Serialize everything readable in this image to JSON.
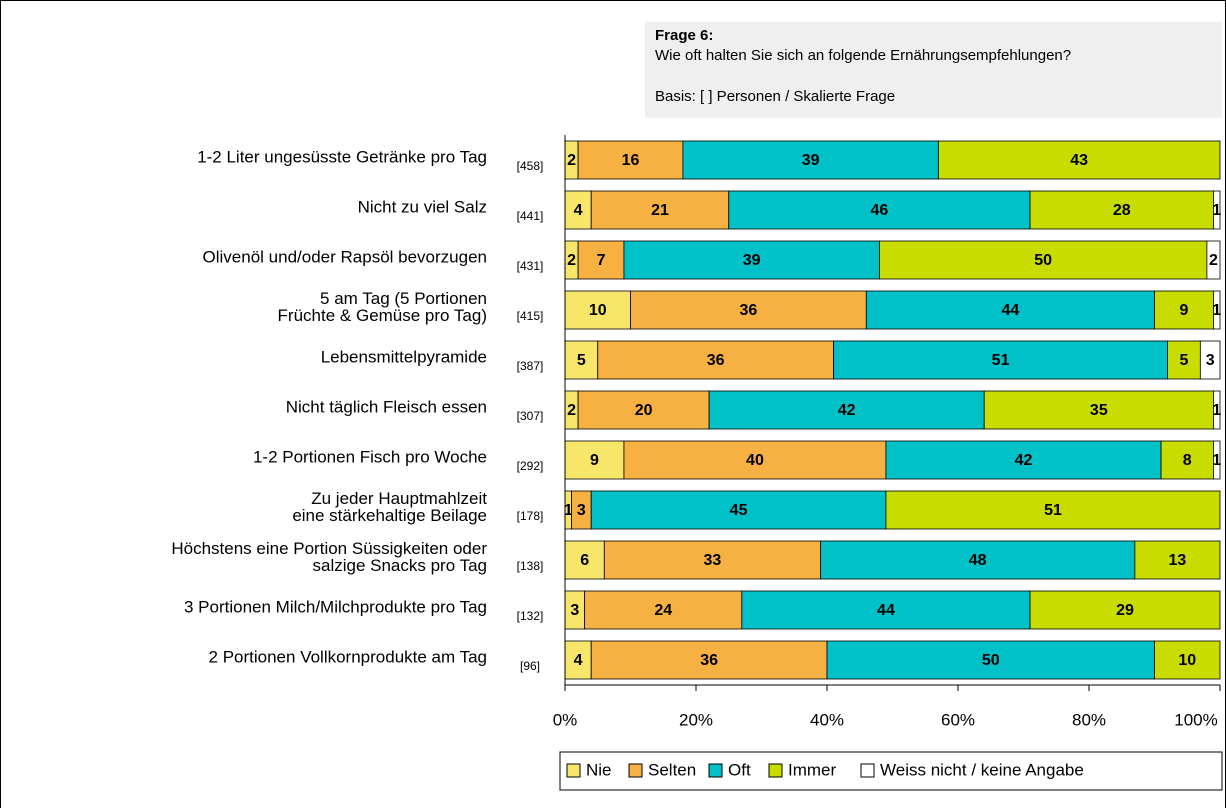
{
  "chart_data": {
    "type": "stacked_barh",
    "question_title": "Frage 6:",
    "question_text": "Wie oft halten Sie sich an folgende Ernährungsempfehlungen?",
    "basis": "Basis: [ ] Personen / Skalierte Frage",
    "categories": [
      [
        "1-2 Liter ungesüsste Getränke pro Tag"
      ],
      [
        "Nicht zu viel Salz"
      ],
      [
        "Olivenöl und/oder Rapsöl bevorzugen"
      ],
      [
        "5 am Tag (5 Portionen",
        "Früchte & Gemüse pro Tag)"
      ],
      [
        "Lebensmittelpyramide"
      ],
      [
        "Nicht täglich Fleisch essen"
      ],
      [
        "1-2 Portionen Fisch pro Woche"
      ],
      [
        "Zu jeder Hauptmahlzeit",
        "eine stärkehaltige Beilage"
      ],
      [
        "Höchstens eine Portion Süssigkeiten oder",
        "salzige Snacks pro Tag"
      ],
      [
        "3 Portionen Milch/Milchprodukte pro Tag"
      ],
      [
        "2 Portionen Vollkornprodukte am Tag"
      ]
    ],
    "counts": [
      "[458]",
      "[441]",
      "[431]",
      "[415]",
      "[387]",
      "[307]",
      "[292]",
      "[178]",
      "[138]",
      "[132]",
      "[96]"
    ],
    "series": [
      {
        "name": "Nie",
        "color": "#f7e66a",
        "values": [
          2,
          4,
          2,
          10,
          5,
          2,
          9,
          1,
          6,
          3,
          4
        ]
      },
      {
        "name": "Selten",
        "color": "#f7b042",
        "values": [
          16,
          21,
          7,
          36,
          36,
          20,
          40,
          3,
          33,
          24,
          36
        ]
      },
      {
        "name": "Oft",
        "color": "#00c0c8",
        "values": [
          39,
          46,
          39,
          44,
          51,
          42,
          42,
          45,
          48,
          44,
          50
        ]
      },
      {
        "name": "Immer",
        "color": "#c8dc00",
        "values": [
          43,
          28,
          50,
          9,
          5,
          35,
          8,
          51,
          13,
          29,
          10
        ]
      },
      {
        "name": "Weiss nicht / keine Angabe",
        "color": "#ffffff",
        "values": [
          null,
          1,
          2,
          1,
          3,
          1,
          1,
          null,
          null,
          null,
          null
        ]
      }
    ],
    "xlim": [
      0,
      100
    ],
    "xticks": [
      {
        "value": 0,
        "label": "0%"
      },
      {
        "value": 20,
        "label": "20%"
      },
      {
        "value": 40,
        "label": "40%"
      },
      {
        "value": 60,
        "label": "60%"
      },
      {
        "value": 80,
        "label": "80%"
      },
      {
        "value": 100,
        "label": "100%"
      }
    ]
  }
}
